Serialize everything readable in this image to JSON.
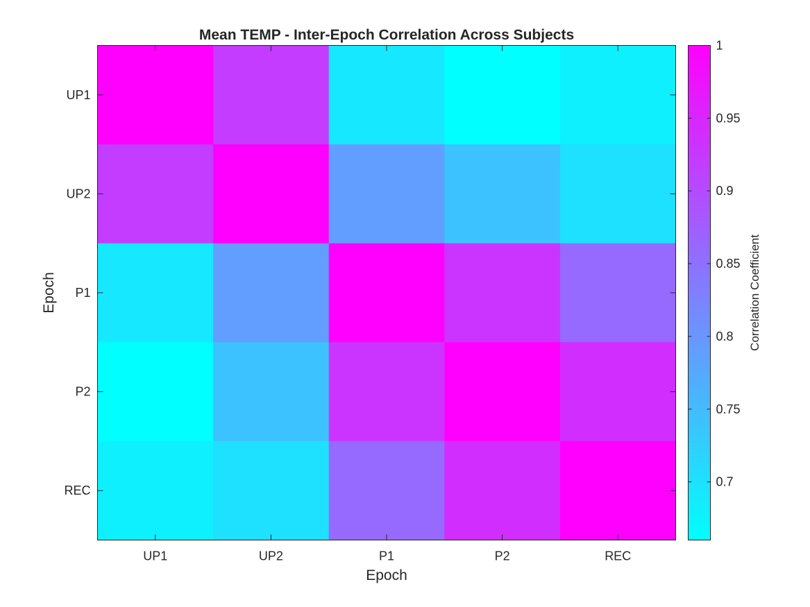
{
  "chart_data": {
    "type": "heatmap",
    "title": "Mean TEMP - Inter-Epoch Correlation Across Subjects",
    "xlabel": "Epoch",
    "ylabel": "Epoch",
    "x_categories": [
      "UP1",
      "UP2",
      "P1",
      "P2",
      "REC"
    ],
    "y_categories": [
      "UP1",
      "UP2",
      "P1",
      "P2",
      "REC"
    ],
    "values": [
      [
        1.0,
        0.92,
        0.69,
        0.66,
        0.68
      ],
      [
        0.92,
        1.0,
        0.79,
        0.74,
        0.7
      ],
      [
        0.69,
        0.79,
        1.0,
        0.93,
        0.86
      ],
      [
        0.66,
        0.74,
        0.93,
        1.0,
        0.94
      ],
      [
        0.68,
        0.7,
        0.86,
        0.94,
        1.0
      ]
    ],
    "colormap": "cool",
    "colormap_low": "#00ffff",
    "colormap_high": "#ff00ff",
    "clim": [
      0.66,
      1.0
    ],
    "colorbar": {
      "label": "Correlation Coefficient",
      "ticks": [
        "0.7",
        "0.75",
        "0.8",
        "0.85",
        "0.9",
        "0.95",
        "1"
      ]
    }
  }
}
